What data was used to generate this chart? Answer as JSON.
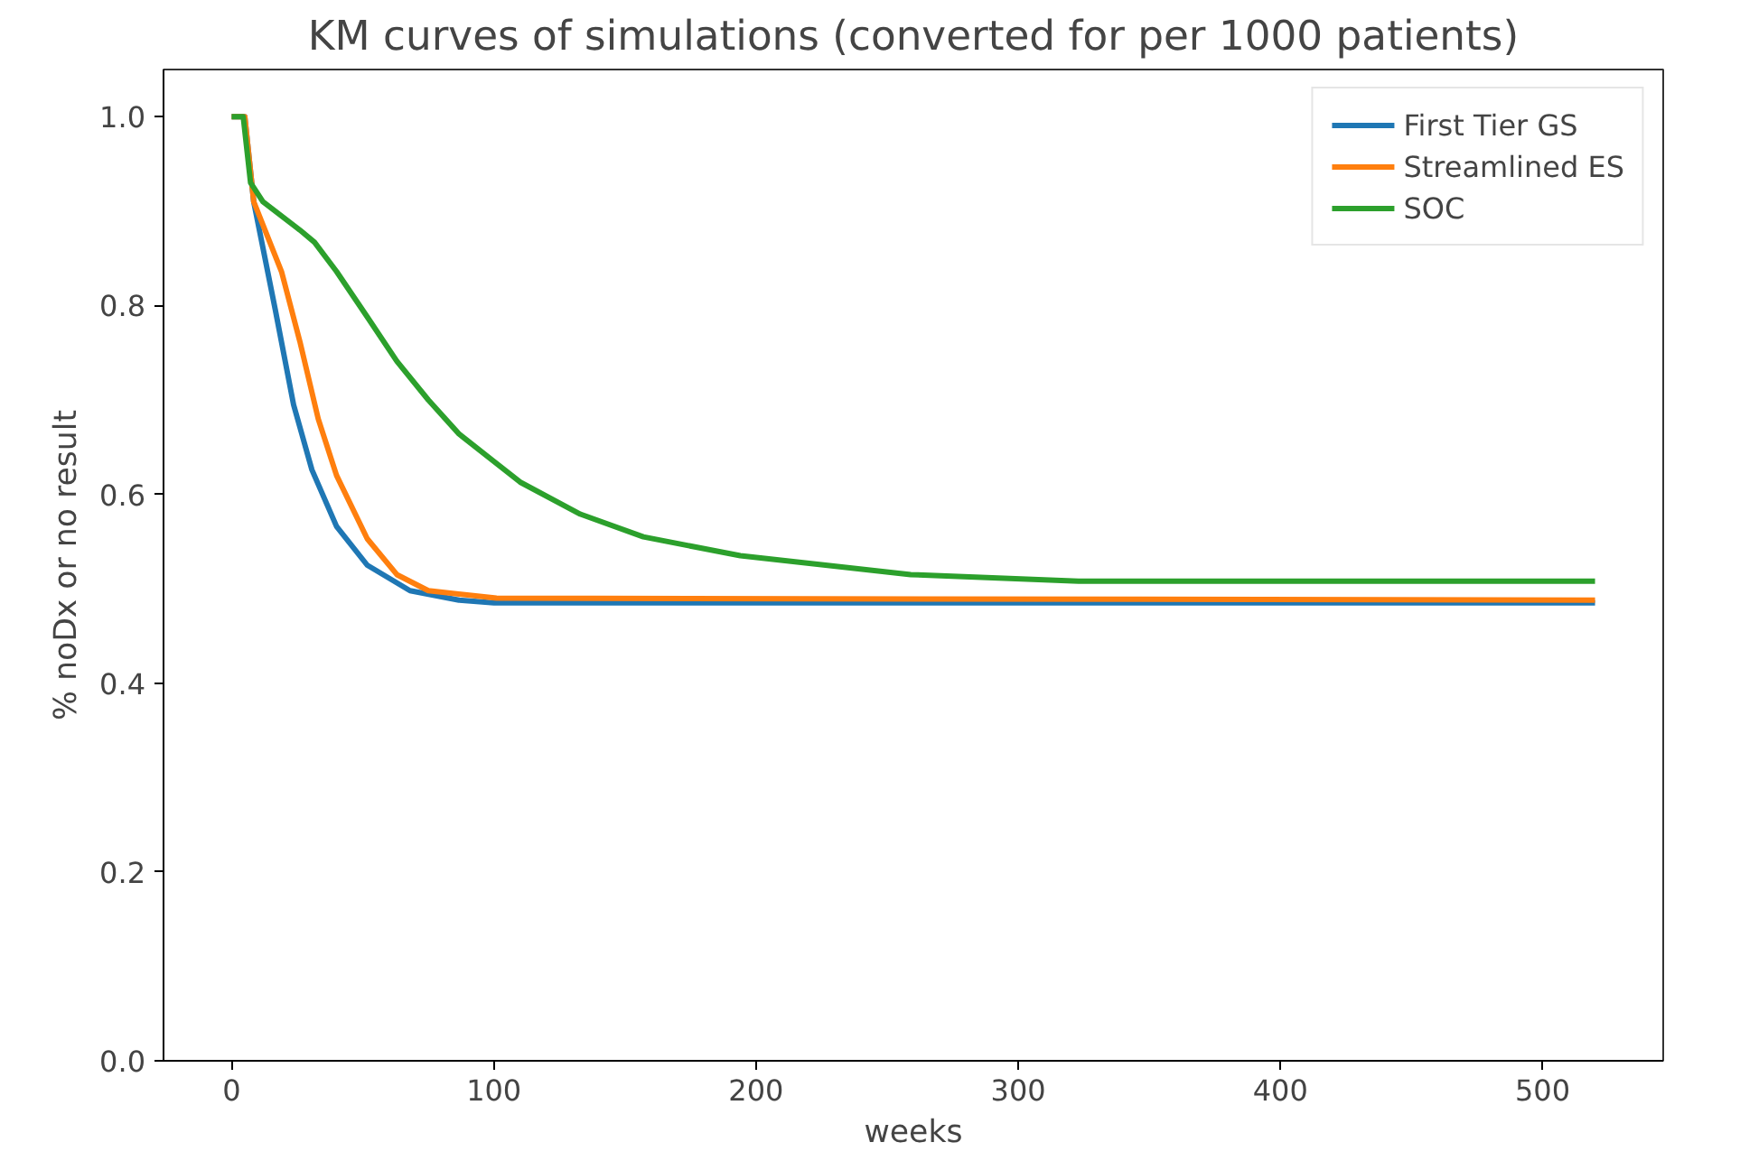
{
  "chart_data": {
    "type": "line",
    "title": "KM curves of simulations (converted for per 1000 patients)",
    "xlabel": "weeks",
    "ylabel": "% noDx or no result",
    "xlim": [
      -26,
      546
    ],
    "ylim": [
      0,
      1.05
    ],
    "xticks": [
      0,
      100,
      200,
      300,
      400,
      500
    ],
    "yticks": [
      {
        "value": 0,
        "label": "0.0"
      },
      {
        "value": 0.2,
        "label": "0.2"
      },
      {
        "value": 0.4,
        "label": "0.4"
      },
      {
        "value": 0.6,
        "label": "0.6"
      },
      {
        "value": 0.8,
        "label": "0.8"
      },
      {
        "value": 1,
        "label": "1.0"
      }
    ],
    "grid": false,
    "legend": "top right",
    "line_style": "solid",
    "series": [
      {
        "name": "First Tier GS",
        "color": "#1f77b4",
        "x": [
          0,
          5,
          8.4,
          16.6,
          23.6,
          30.6,
          40,
          51.7,
          68,
          86.7,
          100,
          520
        ],
        "values": [
          1.0,
          1.0,
          0.91,
          0.796,
          0.695,
          0.626,
          0.566,
          0.525,
          0.498,
          0.488,
          0.485,
          0.485
        ]
      },
      {
        "name": "Streamlined ES",
        "color": "#ff7f0e",
        "x": [
          0,
          5,
          8.4,
          19,
          26,
          33,
          40,
          51.7,
          63,
          75,
          101,
          520
        ],
        "values": [
          1.0,
          1.0,
          0.91,
          0.836,
          0.762,
          0.68,
          0.62,
          0.553,
          0.515,
          0.498,
          0.49,
          0.488
        ]
      },
      {
        "name": "SOC",
        "color": "#2ca02c",
        "x": [
          0,
          4.4,
          7.2,
          11.9,
          26,
          31.6,
          40,
          51.7,
          63,
          75,
          86.7,
          110,
          133,
          157,
          194,
          259,
          323,
          520
        ],
        "values": [
          1.0,
          1.0,
          0.93,
          0.91,
          0.88,
          0.867,
          0.836,
          0.788,
          0.741,
          0.7,
          0.664,
          0.613,
          0.579,
          0.555,
          0.535,
          0.515,
          0.508,
          0.508
        ]
      }
    ]
  }
}
